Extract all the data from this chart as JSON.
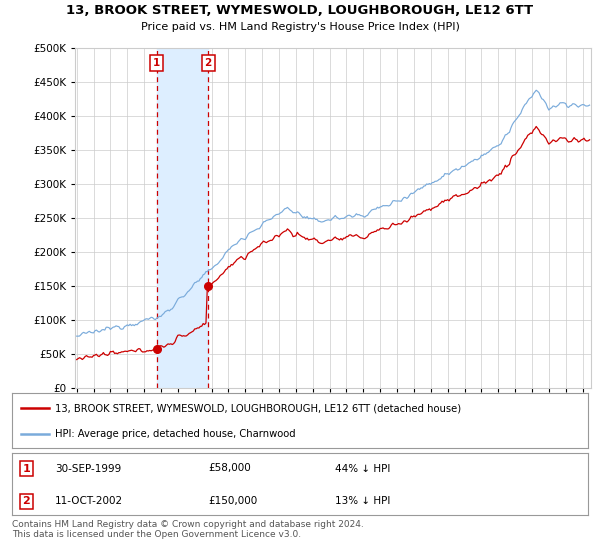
{
  "title": "13, BROOK STREET, WYMESWOLD, LOUGHBOROUGH, LE12 6TT",
  "subtitle": "Price paid vs. HM Land Registry's House Price Index (HPI)",
  "red_label": "13, BROOK STREET, WYMESWOLD, LOUGHBOROUGH, LE12 6TT (detached house)",
  "blue_label": "HPI: Average price, detached house, Charnwood",
  "sale1_date": "30-SEP-1999",
  "sale1_price": 58000,
  "sale1_pct": "44% ↓ HPI",
  "sale1_year": 1999.75,
  "sale2_date": "11-OCT-2002",
  "sale2_price": 150000,
  "sale2_pct": "13% ↓ HPI",
  "sale2_year": 2002.79,
  "ylim": [
    0,
    500000
  ],
  "xlim_start": 1994.9,
  "xlim_end": 2025.5,
  "footer": "Contains HM Land Registry data © Crown copyright and database right 2024.\nThis data is licensed under the Open Government Licence v3.0.",
  "background_color": "#ffffff",
  "grid_color": "#cccccc",
  "red_color": "#cc0000",
  "blue_color": "#7aabdb",
  "shade_color": "#ddeeff"
}
